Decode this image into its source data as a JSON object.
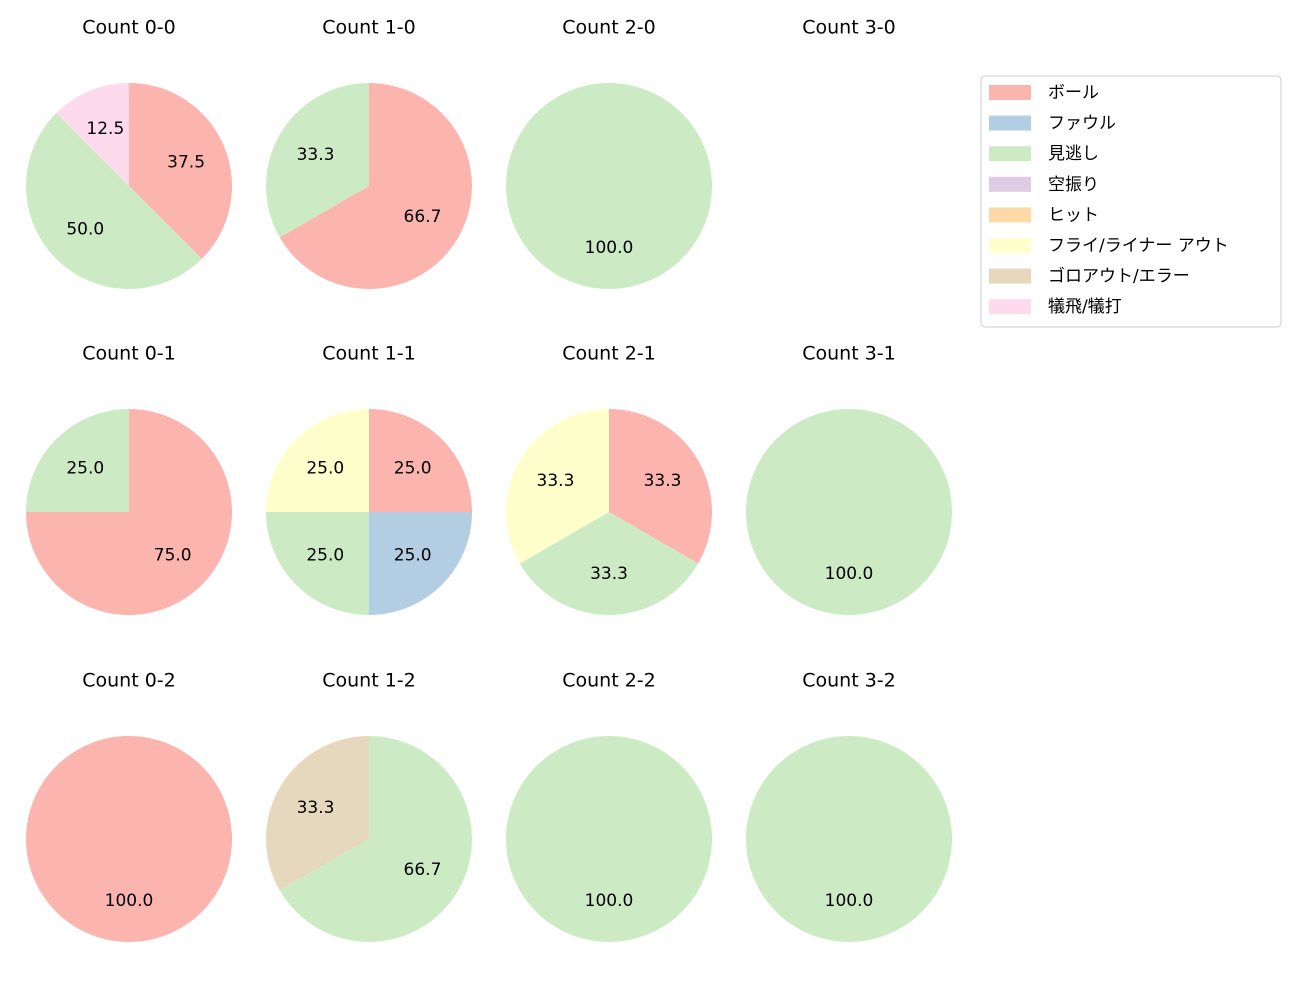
{
  "legend": {
    "position": "upper right",
    "items": [
      {
        "name": "ボール",
        "color": "#fbb4ae"
      },
      {
        "name": "ファウル",
        "color": "#b3cde3"
      },
      {
        "name": "見逃し",
        "color": "#ccebc5"
      },
      {
        "name": "空振り",
        "color": "#decbe4"
      },
      {
        "name": "ヒット",
        "color": "#fed9a6"
      },
      {
        "name": "フライ/ライナー アウト",
        "color": "#ffffcc"
      },
      {
        "name": "ゴロアウト/エラー",
        "color": "#e5d8bd"
      },
      {
        "name": "犠飛/犠打",
        "color": "#fddaec"
      }
    ]
  },
  "chart_data": [
    {
      "type": "pie",
      "title": "Count 0-0",
      "categories": [
        "ボール",
        "見逃し",
        "犠飛/犠打"
      ],
      "values": [
        37.5,
        50,
        12.5
      ],
      "value_labels": [
        "37.5",
        "50.0",
        "12.5"
      ]
    },
    {
      "type": "pie",
      "title": "Count 1-0",
      "categories": [
        "ボール",
        "見逃し"
      ],
      "values": [
        66.7,
        33.3
      ],
      "value_labels": [
        "66.7",
        "33.3"
      ]
    },
    {
      "type": "pie",
      "title": "Count 2-0",
      "categories": [
        "見逃し"
      ],
      "values": [
        100
      ],
      "value_labels": [
        "100.0"
      ]
    },
    {
      "type": "pie",
      "title": "Count 3-0",
      "categories": [],
      "values": [],
      "value_labels": []
    },
    {
      "type": "pie",
      "title": "Count 0-1",
      "categories": [
        "ボール",
        "見逃し"
      ],
      "values": [
        75,
        25
      ],
      "value_labels": [
        "75.0",
        "25.0"
      ]
    },
    {
      "type": "pie",
      "title": "Count 1-1",
      "categories": [
        "ボール",
        "ファウル",
        "見逃し",
        "フライ/ライナー アウト"
      ],
      "values": [
        25,
        25,
        25,
        25
      ],
      "value_labels": [
        "25.0",
        "25.0",
        "25.0",
        "25.0"
      ]
    },
    {
      "type": "pie",
      "title": "Count 2-1",
      "categories": [
        "ボール",
        "見逃し",
        "フライ/ライナー アウト"
      ],
      "values": [
        33.3,
        33.3,
        33.3
      ],
      "value_labels": [
        "33.3",
        "33.3",
        "33.3"
      ]
    },
    {
      "type": "pie",
      "title": "Count 3-1",
      "categories": [
        "見逃し"
      ],
      "values": [
        100
      ],
      "value_labels": [
        "100.0"
      ]
    },
    {
      "type": "pie",
      "title": "Count 0-2",
      "categories": [
        "ボール"
      ],
      "values": [
        100
      ],
      "value_labels": [
        "100.0"
      ]
    },
    {
      "type": "pie",
      "title": "Count 1-2",
      "categories": [
        "見逃し",
        "ゴロアウト/エラー"
      ],
      "values": [
        66.7,
        33.3
      ],
      "value_labels": [
        "66.7",
        "33.3"
      ]
    },
    {
      "type": "pie",
      "title": "Count 2-2",
      "categories": [
        "見逃し"
      ],
      "values": [
        100
      ],
      "value_labels": [
        "100.0"
      ]
    },
    {
      "type": "pie",
      "title": "Count 3-2",
      "categories": [
        "見逃し"
      ],
      "values": [
        100
      ],
      "value_labels": [
        "100.0"
      ]
    }
  ]
}
